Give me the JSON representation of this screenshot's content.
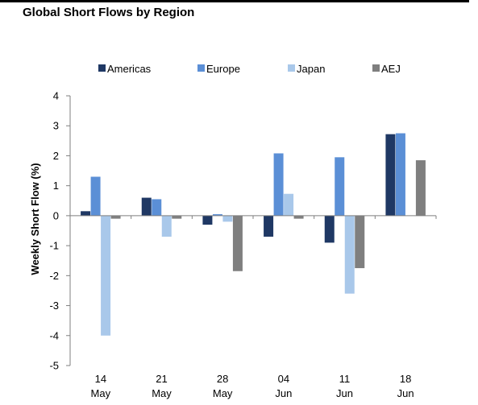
{
  "header": {
    "title": "Global Short Flows by Region"
  },
  "chart_data": {
    "type": "bar",
    "title": "Global Short Flows by Region",
    "xlabel": "",
    "ylabel": "Weekly Short Flow (%)",
    "ylim": [
      -5,
      4
    ],
    "yticks": [
      4,
      3,
      2,
      1,
      0,
      -1,
      -2,
      -3,
      -4,
      -5
    ],
    "categories": [
      [
        "14",
        "May"
      ],
      [
        "21",
        "May"
      ],
      [
        "28",
        "May"
      ],
      [
        "04",
        "Jun"
      ],
      [
        "11",
        "Jun"
      ],
      [
        "18",
        "Jun"
      ]
    ],
    "legend_position": "top",
    "grid": false,
    "series": [
      {
        "name": "Americas",
        "color": "#1f3864",
        "values": [
          0.15,
          0.6,
          -0.3,
          -0.7,
          -0.9,
          2.72
        ]
      },
      {
        "name": "Europe",
        "color": "#5b8fd6",
        "values": [
          1.3,
          0.55,
          0.05,
          2.08,
          1.95,
          2.75
        ]
      },
      {
        "name": "Japan",
        "color": "#a9c8ea",
        "values": [
          -4.0,
          -0.7,
          -0.2,
          0.73,
          -2.6,
          0
        ]
      },
      {
        "name": "AEJ",
        "color": "#7f7f7f",
        "values": [
          -0.1,
          -0.1,
          -1.85,
          -0.1,
          -1.75,
          1.85
        ]
      }
    ]
  }
}
